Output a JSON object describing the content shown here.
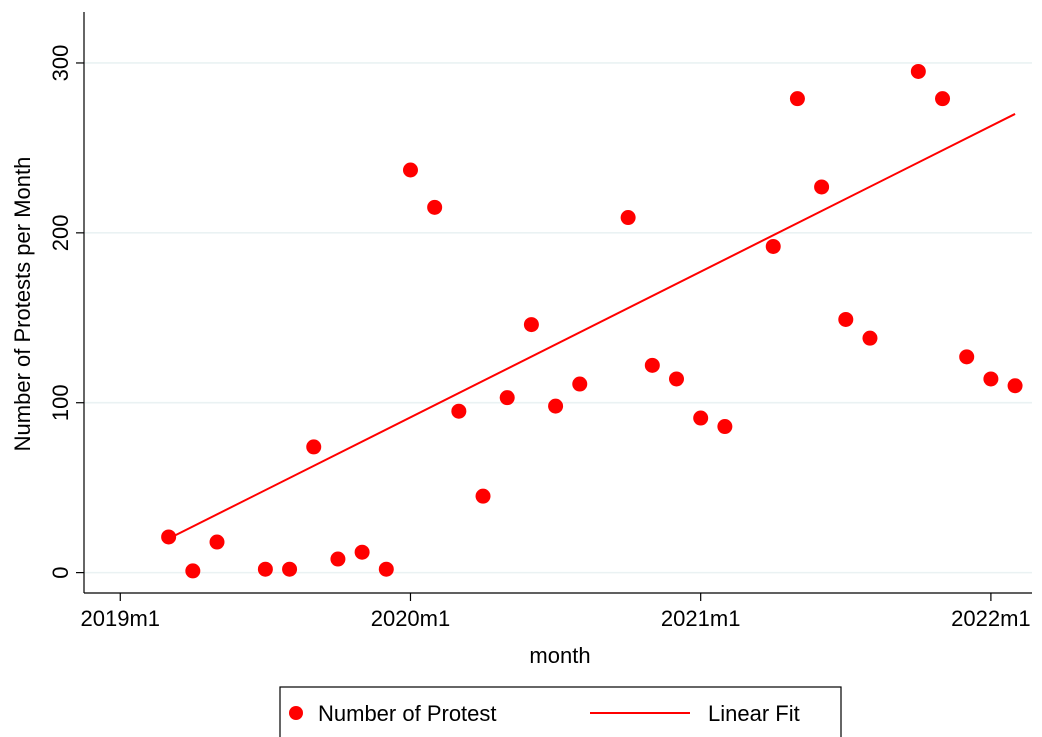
{
  "chart_data": {
    "type": "scatter",
    "xlabel": "month",
    "ylabel": "Number of Protests per Month",
    "x_ticks": [
      {
        "value": 0,
        "label": "2019m1"
      },
      {
        "value": 12,
        "label": "2020m1"
      },
      {
        "value": 24,
        "label": "2021m1"
      },
      {
        "value": 36,
        "label": "2022m1"
      }
    ],
    "y_ticks": [
      0,
      100,
      200,
      300
    ],
    "xlim": [
      -1.5,
      37.7
    ],
    "ylim": [
      -12,
      330
    ],
    "grid": true,
    "legend_position": "bottom",
    "series": [
      {
        "name": "Number of Protest",
        "kind": "scatter",
        "color": "#ff0000",
        "points": [
          {
            "x": 2,
            "y": 21
          },
          {
            "x": 3,
            "y": 1
          },
          {
            "x": 4,
            "y": 18
          },
          {
            "x": 6,
            "y": 2
          },
          {
            "x": 7,
            "y": 2
          },
          {
            "x": 8,
            "y": 74
          },
          {
            "x": 9,
            "y": 8
          },
          {
            "x": 10,
            "y": 12
          },
          {
            "x": 11,
            "y": 2
          },
          {
            "x": 12,
            "y": 237
          },
          {
            "x": 13,
            "y": 215
          },
          {
            "x": 14,
            "y": 95
          },
          {
            "x": 15,
            "y": 45
          },
          {
            "x": 16,
            "y": 103
          },
          {
            "x": 17,
            "y": 146
          },
          {
            "x": 18,
            "y": 98
          },
          {
            "x": 19,
            "y": 111
          },
          {
            "x": 21,
            "y": 209
          },
          {
            "x": 22,
            "y": 122
          },
          {
            "x": 23,
            "y": 114
          },
          {
            "x": 24,
            "y": 91
          },
          {
            "x": 25,
            "y": 86
          },
          {
            "x": 27,
            "y": 192
          },
          {
            "x": 28,
            "y": 279
          },
          {
            "x": 29,
            "y": 227
          },
          {
            "x": 30,
            "y": 149
          },
          {
            "x": 31,
            "y": 138
          },
          {
            "x": 33,
            "y": 295
          },
          {
            "x": 34,
            "y": 279
          },
          {
            "x": 35,
            "y": 127
          },
          {
            "x": 36,
            "y": 114
          },
          {
            "x": 37,
            "y": 110
          }
        ]
      },
      {
        "name": "Linear Fit",
        "kind": "line",
        "color": "#ff0000",
        "points": [
          {
            "x": 2,
            "y": 20
          },
          {
            "x": 37,
            "y": 270
          }
        ]
      }
    ]
  }
}
